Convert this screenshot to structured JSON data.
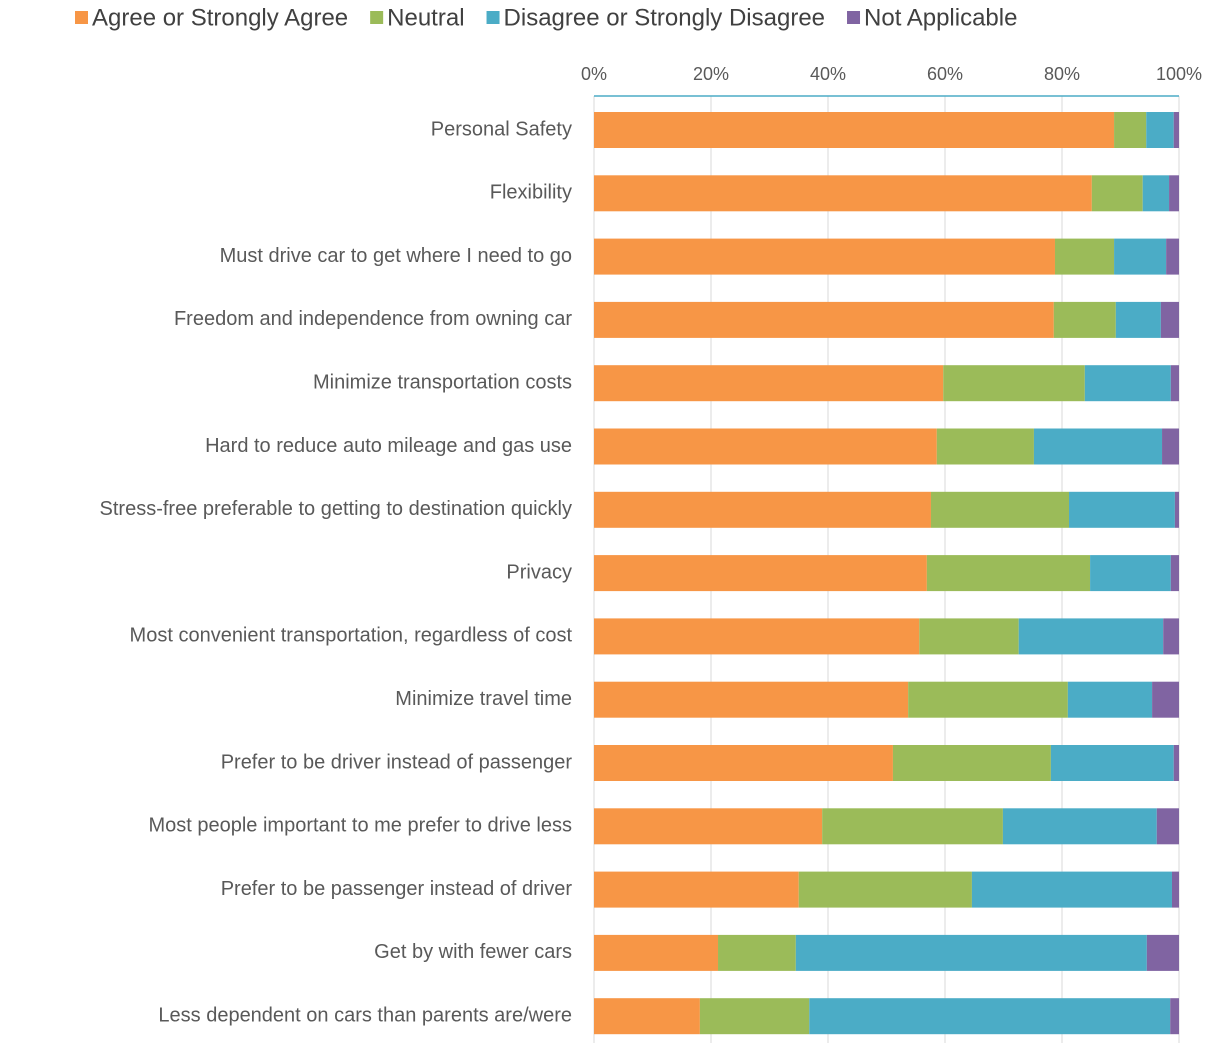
{
  "chart_data": {
    "type": "stacked_bar_horizontal",
    "categories": [
      "Personal Safety",
      "Flexibility",
      "Must drive car to get where I need to go",
      "Freedom and independence from owning car",
      "Minimize transportation costs",
      "Hard to reduce auto mileage and gas use",
      "Stress-free preferable to getting to destination quickly",
      "Privacy",
      "Most convenient transportation, regardless of cost",
      "Minimize travel time",
      "Prefer to be driver instead of passenger",
      "Most people important to me prefer to drive less",
      "Prefer to be passenger instead of driver",
      "Get by with fewer cars",
      "Less dependent on cars than parents are/were"
    ],
    "series": [
      {
        "name": "Agree or Strongly Agree",
        "color": "#f79646",
        "values": [
          88.9,
          85.1,
          78.8,
          78.6,
          59.7,
          58.6,
          57.6,
          56.9,
          55.6,
          53.7,
          51.1,
          39.0,
          35.0,
          21.2,
          18.1
        ]
      },
      {
        "name": "Neutral",
        "color": "#9bbb59",
        "values": [
          5.5,
          8.7,
          10.1,
          10.6,
          24.2,
          16.6,
          23.6,
          27.9,
          17.0,
          27.3,
          27.0,
          30.9,
          29.6,
          13.3,
          18.7
        ]
      },
      {
        "name": "Disagree or Strongly Disagree",
        "color": "#4bacc6",
        "values": [
          4.7,
          4.5,
          8.9,
          7.7,
          14.7,
          21.9,
          18.1,
          13.8,
          24.7,
          14.4,
          21.0,
          26.3,
          34.2,
          60.0,
          61.7
        ]
      },
      {
        "name": "Not Applicable",
        "color": "#8064a2",
        "values": [
          0.9,
          1.7,
          2.2,
          3.1,
          1.4,
          2.9,
          0.7,
          1.4,
          2.7,
          4.6,
          0.9,
          3.8,
          1.2,
          5.5,
          1.5
        ]
      }
    ],
    "xlim": [
      0,
      100
    ],
    "xticks": [
      {
        "value": 0,
        "label": "0%"
      },
      {
        "value": 20,
        "label": "20%"
      },
      {
        "value": 40,
        "label": "40%"
      },
      {
        "value": 60,
        "label": "60%"
      },
      {
        "value": 80,
        "label": "80%"
      },
      {
        "value": 100,
        "label": "100%"
      }
    ],
    "grid": true,
    "legend": "top"
  }
}
